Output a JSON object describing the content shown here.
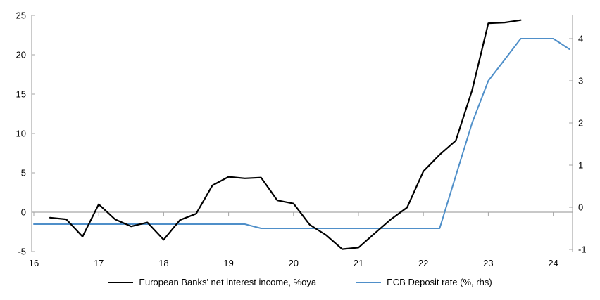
{
  "chart": {
    "background_color": "#ffffff",
    "axis_color": "#a6a6a6",
    "zero_line_color": "#a6a6a6",
    "text_color": "#000000"
  },
  "chart_data": {
    "type": "line",
    "title": "",
    "x_axis": {
      "ticks": [
        16,
        17,
        18,
        19,
        20,
        21,
        22,
        23,
        24
      ],
      "range": [
        16,
        24.3
      ]
    },
    "left_axis": {
      "ticks": [
        25,
        20,
        15,
        10,
        5,
        0,
        "-5"
      ],
      "tick_values": [
        25,
        20,
        15,
        10,
        5,
        0,
        -5
      ],
      "range": [
        -5,
        25
      ]
    },
    "right_axis": {
      "ticks": [
        4,
        3,
        2,
        1,
        0,
        "-1"
      ],
      "tick_values": [
        4,
        3,
        2,
        1,
        0,
        -1
      ],
      "range": [
        -1.05,
        4.55
      ]
    },
    "gridlines": "zero-line-only",
    "legend_position": "bottom-center",
    "series": [
      {
        "name": "European Banks' net interest income, %oya",
        "axis": "left",
        "color": "#000000",
        "stroke_width": 2.2,
        "x": [
          16.25,
          16.5,
          16.75,
          17.0,
          17.25,
          17.5,
          17.75,
          18.0,
          18.25,
          18.5,
          18.75,
          19.0,
          19.25,
          19.5,
          19.75,
          20.0,
          20.25,
          20.5,
          20.75,
          21.0,
          21.25,
          21.5,
          21.75,
          22.0,
          22.25,
          22.5,
          22.75,
          23.0,
          23.25,
          23.5
        ],
        "values": [
          -0.7,
          -0.9,
          -3.1,
          1.0,
          -0.9,
          -1.8,
          -1.3,
          -3.5,
          -1.0,
          -0.2,
          3.4,
          4.5,
          4.3,
          4.4,
          1.5,
          1.1,
          -1.6,
          -2.9,
          -4.7,
          -4.5,
          -2.7,
          -0.9,
          0.6,
          5.2,
          7.3,
          9.1,
          15.5,
          24.0,
          24.1,
          24.4
        ]
      },
      {
        "name": "ECB Deposit rate (%, rhs)",
        "axis": "right",
        "color": "#4F8FC9",
        "stroke_width": 2,
        "x": [
          16.0,
          16.25,
          16.5,
          16.75,
          17.0,
          17.25,
          17.5,
          17.75,
          18.0,
          18.25,
          18.5,
          18.75,
          19.0,
          19.25,
          19.5,
          19.75,
          20.0,
          20.25,
          20.5,
          20.75,
          21.0,
          21.25,
          21.5,
          21.75,
          22.0,
          22.25,
          22.5,
          22.75,
          23.0,
          23.25,
          23.5,
          23.75,
          24.0,
          24.25
        ],
        "values": [
          -0.4,
          -0.4,
          -0.4,
          -0.4,
          -0.4,
          -0.4,
          -0.4,
          -0.4,
          -0.4,
          -0.4,
          -0.4,
          -0.4,
          -0.4,
          -0.4,
          -0.5,
          -0.5,
          -0.5,
          -0.5,
          -0.5,
          -0.5,
          -0.5,
          -0.5,
          -0.5,
          -0.5,
          -0.5,
          -0.5,
          0.75,
          2.0,
          3.0,
          3.5,
          4.0,
          4.0,
          4.0,
          3.75
        ]
      }
    ]
  }
}
